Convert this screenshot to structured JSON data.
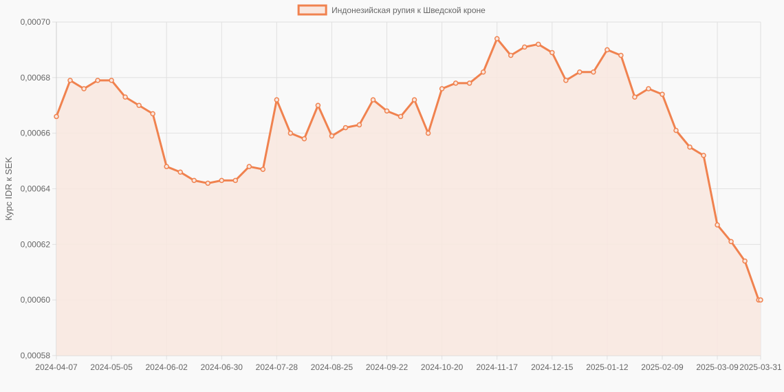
{
  "colors": {
    "line": "#f0824f",
    "fill": "#f9e7df",
    "grid": "#e0e0e0",
    "text": "#666666",
    "background": "#f9f9f9"
  },
  "chart_data": {
    "type": "area",
    "title": "",
    "legend_position": "top",
    "xlabel": "",
    "ylabel": "Курс IDR к SEK",
    "ylim": [
      0.00058,
      0.0007
    ],
    "yticks": [
      "0,00058",
      "0,00060",
      "0,00062",
      "0,00064",
      "0,00066",
      "0,00068",
      "0,00070"
    ],
    "xticks": [
      "2024-04-07",
      "2024-05-05",
      "2024-06-02",
      "2024-06-30",
      "2024-07-28",
      "2024-08-25",
      "2024-09-22",
      "2024-10-20",
      "2024-11-17",
      "2024-12-15",
      "2025-01-12",
      "2025-02-09",
      "2025-03-09",
      "2025-03-31"
    ],
    "grid": true,
    "series": [
      {
        "name": "Индонезийская рупия к Шведской кроне",
        "x": [
          "2024-04-07",
          "2024-04-14",
          "2024-04-21",
          "2024-04-28",
          "2024-05-05",
          "2024-05-12",
          "2024-05-19",
          "2024-05-26",
          "2024-06-02",
          "2024-06-09",
          "2024-06-16",
          "2024-06-23",
          "2024-06-30",
          "2024-07-07",
          "2024-07-14",
          "2024-07-21",
          "2024-07-28",
          "2024-08-04",
          "2024-08-11",
          "2024-08-18",
          "2024-08-25",
          "2024-09-01",
          "2024-09-08",
          "2024-09-15",
          "2024-09-22",
          "2024-09-29",
          "2024-10-06",
          "2024-10-13",
          "2024-10-20",
          "2024-10-27",
          "2024-11-03",
          "2024-11-10",
          "2024-11-17",
          "2024-11-24",
          "2024-12-01",
          "2024-12-08",
          "2024-12-15",
          "2024-12-22",
          "2024-12-29",
          "2025-01-05",
          "2025-01-12",
          "2025-01-19",
          "2025-01-26",
          "2025-02-02",
          "2025-02-09",
          "2025-02-16",
          "2025-02-23",
          "2025-03-02",
          "2025-03-09",
          "2025-03-16",
          "2025-03-23",
          "2025-03-30",
          "2025-03-31"
        ],
        "values": [
          0.000666,
          0.000679,
          0.000676,
          0.000679,
          0.000679,
          0.000673,
          0.00067,
          0.000667,
          0.000648,
          0.000646,
          0.000643,
          0.000642,
          0.000643,
          0.000643,
          0.000648,
          0.000647,
          0.000672,
          0.00066,
          0.000658,
          0.00067,
          0.000659,
          0.000662,
          0.000663,
          0.000672,
          0.000668,
          0.000666,
          0.000672,
          0.00066,
          0.000676,
          0.000678,
          0.000678,
          0.000682,
          0.000694,
          0.000688,
          0.000691,
          0.000692,
          0.000689,
          0.000679,
          0.000682,
          0.000682,
          0.00069,
          0.000688,
          0.000673,
          0.000676,
          0.000674,
          0.000661,
          0.000655,
          0.000652,
          0.000627,
          0.000621,
          0.000614,
          0.0006,
          0.0006
        ]
      }
    ]
  }
}
